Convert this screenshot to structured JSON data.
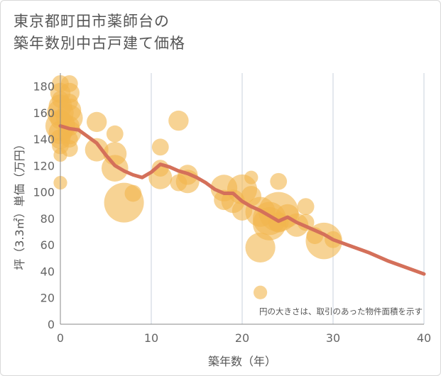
{
  "chart_data": {
    "type": "scatter",
    "title": [
      "東京都町田市薬師台の",
      "築年数別中古戸建て価格"
    ],
    "xlabel": "築年数（年）",
    "ylabel": "坪（3.3㎡）単価（万円）",
    "xlim": [
      0,
      40
    ],
    "ylim": [
      0,
      190
    ],
    "xticks": [
      0,
      10,
      20,
      30,
      40
    ],
    "yticks": [
      0,
      20,
      40,
      60,
      80,
      100,
      120,
      140,
      160,
      180
    ],
    "grid": true,
    "note": "円の大きさは、取引のあった物件面積を示す",
    "colors": {
      "bubble": "#f2b64c",
      "trend": "#d4705a",
      "grid": "#c8d2dc",
      "axis": "#888888"
    },
    "points": [
      {
        "x": 0,
        "y": 182,
        "size": 3
      },
      {
        "x": 0,
        "y": 175,
        "size": 4
      },
      {
        "x": 0,
        "y": 170,
        "size": 3
      },
      {
        "x": 0,
        "y": 165,
        "size": 5
      },
      {
        "x": 0,
        "y": 160,
        "size": 6
      },
      {
        "x": 0,
        "y": 155,
        "size": 4
      },
      {
        "x": 0,
        "y": 150,
        "size": 7
      },
      {
        "x": 0,
        "y": 145,
        "size": 5
      },
      {
        "x": 0,
        "y": 140,
        "size": 4
      },
      {
        "x": 0,
        "y": 135,
        "size": 3
      },
      {
        "x": 0,
        "y": 128,
        "size": 2
      },
      {
        "x": 0,
        "y": 107,
        "size": 2
      },
      {
        "x": 1,
        "y": 182,
        "size": 3
      },
      {
        "x": 1,
        "y": 175,
        "size": 4
      },
      {
        "x": 1,
        "y": 168,
        "size": 3
      },
      {
        "x": 1,
        "y": 162,
        "size": 5
      },
      {
        "x": 1,
        "y": 156,
        "size": 6
      },
      {
        "x": 1,
        "y": 150,
        "size": 4
      },
      {
        "x": 1,
        "y": 145,
        "size": 5
      },
      {
        "x": 1,
        "y": 140,
        "size": 3
      },
      {
        "x": 1,
        "y": 133,
        "size": 3
      },
      {
        "x": 4,
        "y": 153,
        "size": 4
      },
      {
        "x": 4,
        "y": 132,
        "size": 5
      },
      {
        "x": 6,
        "y": 144,
        "size": 3
      },
      {
        "x": 6,
        "y": 129,
        "size": 5
      },
      {
        "x": 6,
        "y": 118,
        "size": 6
      },
      {
        "x": 7,
        "y": 92,
        "size": 10
      },
      {
        "x": 8,
        "y": 99,
        "size": 3
      },
      {
        "x": 11,
        "y": 134,
        "size": 3
      },
      {
        "x": 11,
        "y": 118,
        "size": 3
      },
      {
        "x": 11,
        "y": 111,
        "size": 5
      },
      {
        "x": 13,
        "y": 154,
        "size": 4
      },
      {
        "x": 13,
        "y": 107,
        "size": 3
      },
      {
        "x": 14,
        "y": 113,
        "size": 4
      },
      {
        "x": 14,
        "y": 108,
        "size": 5
      },
      {
        "x": 18,
        "y": 103,
        "size": 6
      },
      {
        "x": 18,
        "y": 94,
        "size": 4
      },
      {
        "x": 19,
        "y": 93,
        "size": 5
      },
      {
        "x": 20,
        "y": 102,
        "size": 7
      },
      {
        "x": 20,
        "y": 86,
        "size": 4
      },
      {
        "x": 21,
        "y": 111,
        "size": 2
      },
      {
        "x": 21,
        "y": 97,
        "size": 4
      },
      {
        "x": 22,
        "y": 85,
        "size": 7
      },
      {
        "x": 22,
        "y": 58,
        "size": 7
      },
      {
        "x": 22,
        "y": 24,
        "size": 2
      },
      {
        "x": 23,
        "y": 80,
        "size": 8
      },
      {
        "x": 23,
        "y": 76,
        "size": 8
      },
      {
        "x": 24,
        "y": 108,
        "size": 3
      },
      {
        "x": 24,
        "y": 85,
        "size": 10
      },
      {
        "x": 24,
        "y": 77,
        "size": 4
      },
      {
        "x": 25,
        "y": 82,
        "size": 5
      },
      {
        "x": 26,
        "y": 75,
        "size": 5
      },
      {
        "x": 27,
        "y": 89,
        "size": 3
      },
      {
        "x": 27,
        "y": 77,
        "size": 3
      },
      {
        "x": 28,
        "y": 67,
        "size": 3
      },
      {
        "x": 29,
        "y": 63,
        "size": 9
      },
      {
        "x": 30,
        "y": 64,
        "size": 3
      }
    ],
    "trend": {
      "x": [
        0,
        1,
        2,
        3,
        4,
        5,
        6,
        7,
        8,
        9,
        10,
        11,
        12,
        13,
        14,
        15,
        16,
        17,
        18,
        19,
        20,
        21,
        22,
        23,
        24,
        25,
        26,
        27,
        28,
        29,
        30,
        32,
        34,
        36,
        38,
        40
      ],
      "y": [
        150,
        148,
        147,
        142,
        137,
        128,
        120,
        116,
        113,
        111,
        115,
        121,
        119,
        116,
        114,
        111,
        107,
        102,
        99,
        99,
        93,
        89,
        86,
        82,
        78,
        81,
        77,
        74,
        71,
        68,
        64,
        59,
        54,
        48,
        43,
        38
      ]
    }
  }
}
